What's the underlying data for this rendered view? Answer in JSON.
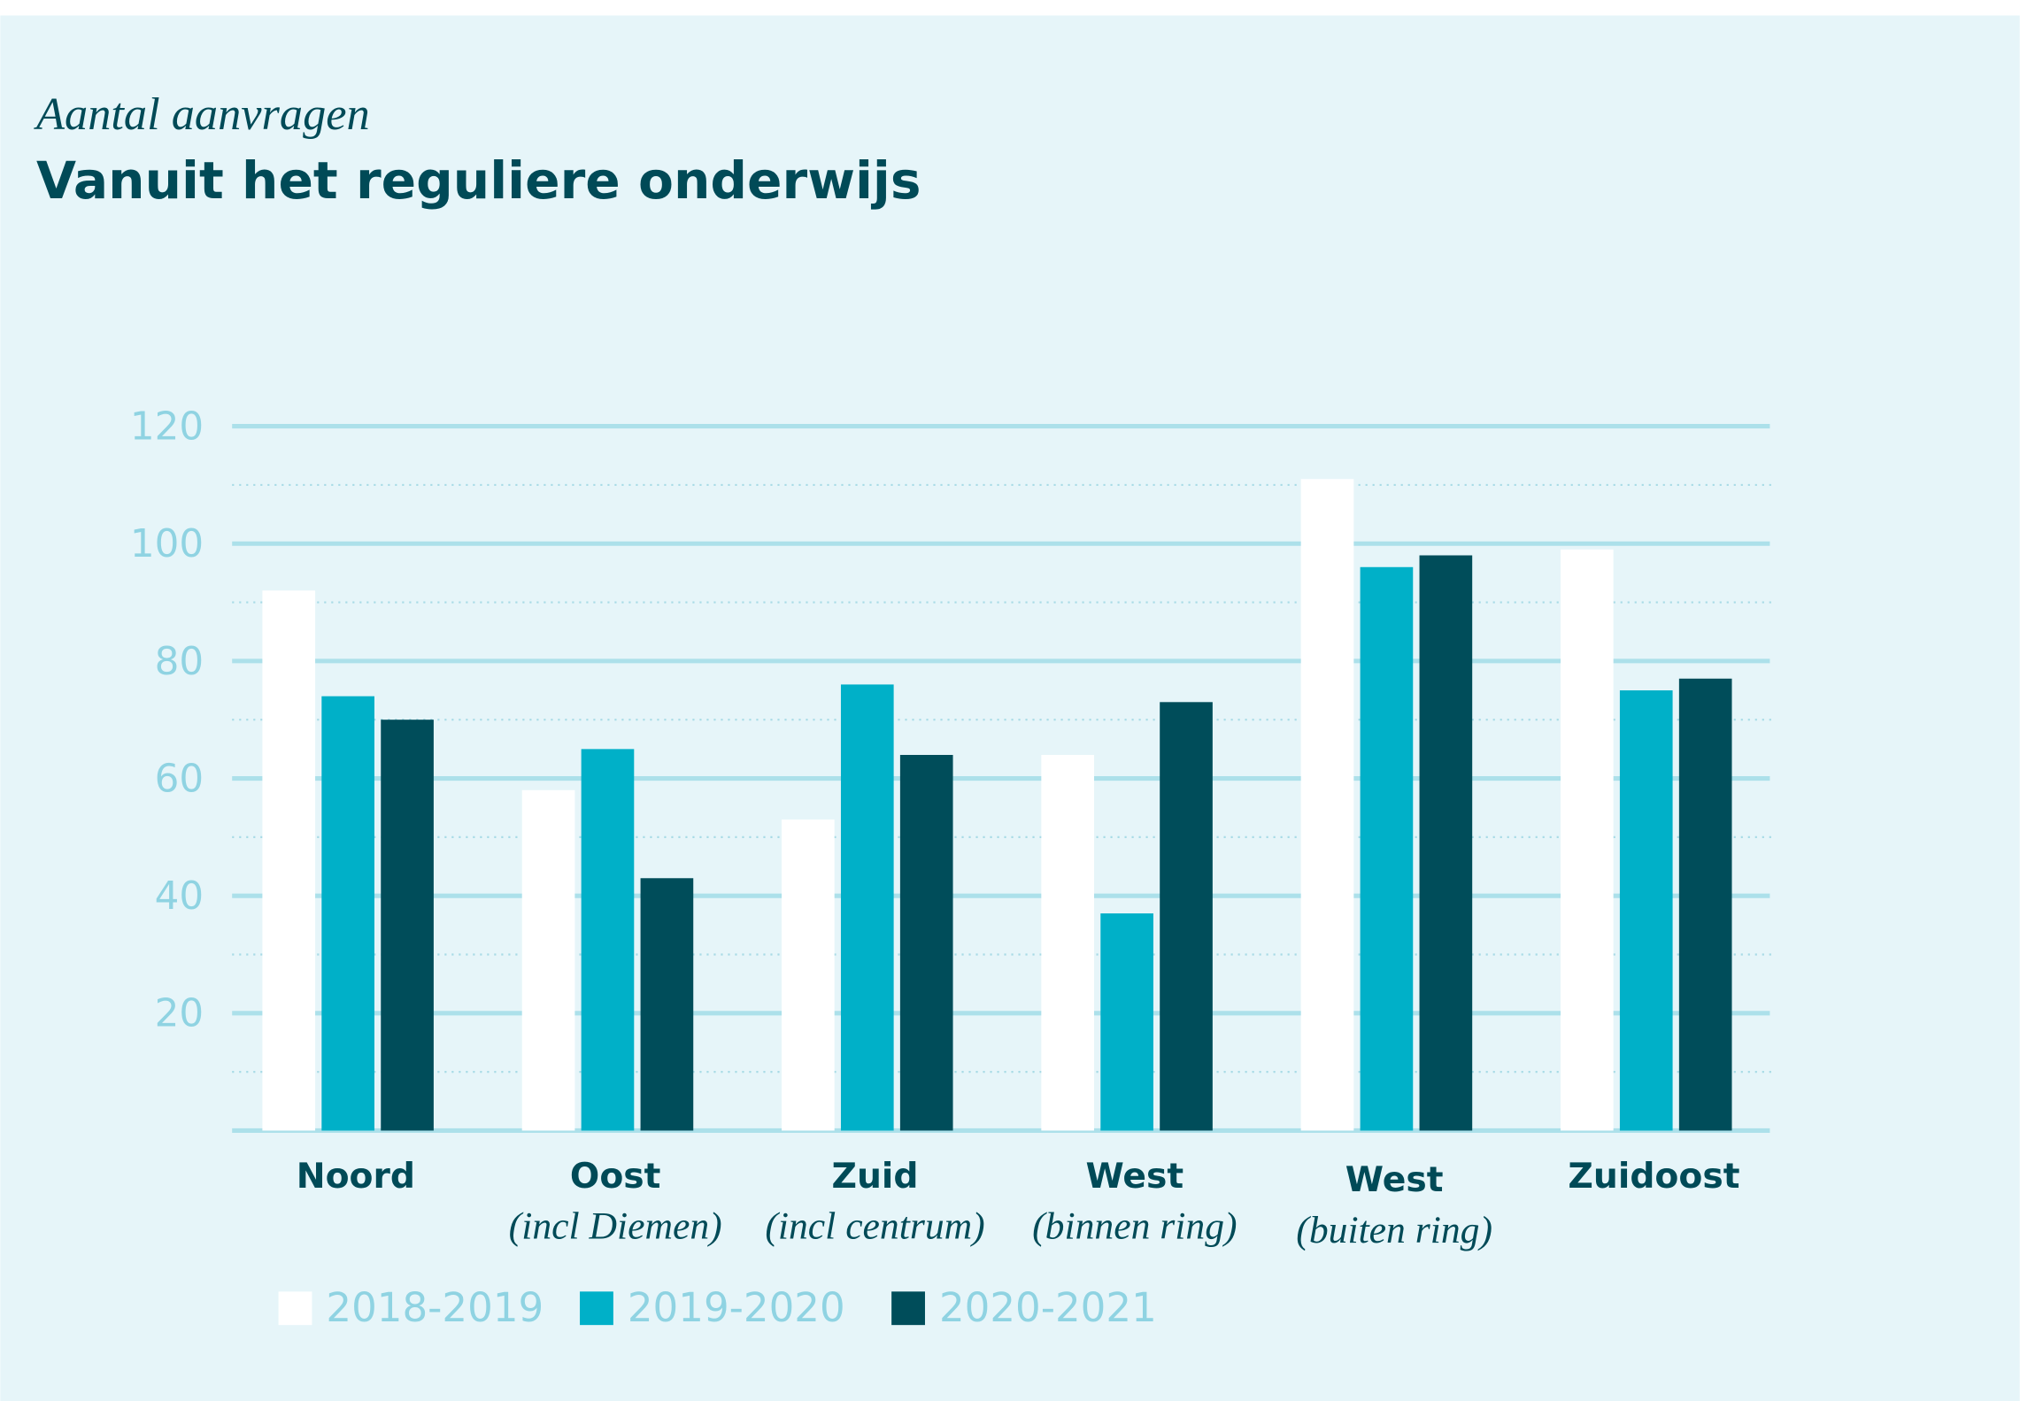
{
  "chart_data": {
    "type": "bar",
    "subtitle": "Aantal aanvragen",
    "title": "Vanuit het reguliere onderwijs",
    "categories": [
      "Noord",
      "Oost",
      "Zuid",
      "West",
      "West",
      "Zuidoost"
    ],
    "category_sublabels": [
      null,
      "(incl Diemen)",
      "(incl centrum)",
      "(binnen ring)",
      "(buiten ring)",
      null
    ],
    "series": [
      {
        "name": "2018-2019",
        "color": "#ffffff",
        "values": [
          92,
          58,
          53,
          64,
          111,
          99
        ]
      },
      {
        "name": "2019-2020",
        "color": "#00b0c8",
        "values": [
          74,
          65,
          76,
          37,
          96,
          75
        ]
      },
      {
        "name": "2020-2021",
        "color": "#004d5a",
        "values": [
          70,
          43,
          64,
          73,
          98,
          77
        ]
      }
    ],
    "ylim": [
      0,
      120
    ],
    "yticks": [
      20,
      40,
      60,
      80,
      100,
      120
    ],
    "minor_yticks": [
      10,
      30,
      50,
      70,
      90,
      110
    ],
    "grid": true
  }
}
